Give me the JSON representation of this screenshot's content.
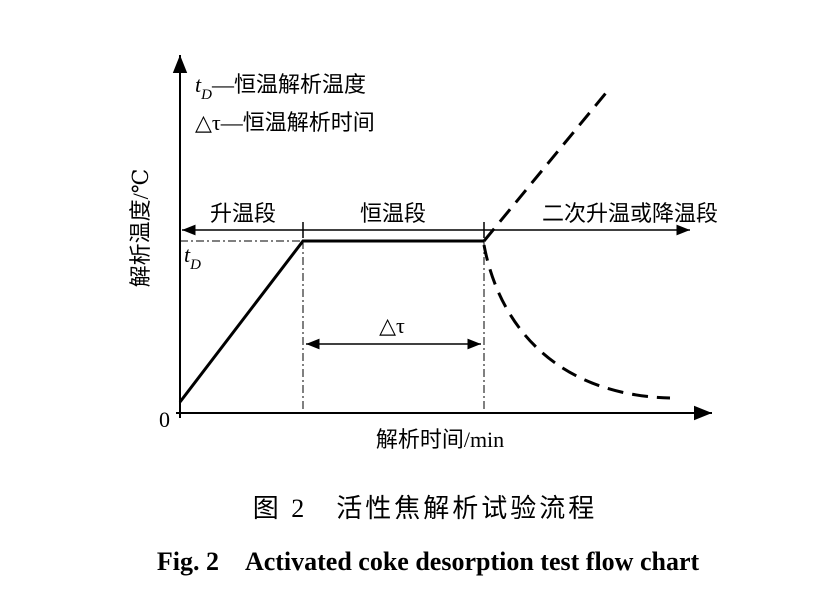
{
  "legend": [
    {
      "symbol": "t",
      "subscript": "D",
      "text": "—恒温解析温度"
    },
    {
      "symbol": "△τ",
      "text": "—恒温解析时间"
    }
  ],
  "y_axis_label": "解析温度/℃",
  "x_axis_label": "解析时间/min",
  "origin_label": "0",
  "stages": [
    "升温段",
    "恒温段",
    "二次升温或降温段"
  ],
  "td_marker": {
    "symbol": "t",
    "subscript": "D"
  },
  "delta_tau_label": "△τ",
  "caption_cn": "图 2　活性焦解析试验流程",
  "caption_en": "Fig. 2　Activated coke desorption test flow chart"
}
